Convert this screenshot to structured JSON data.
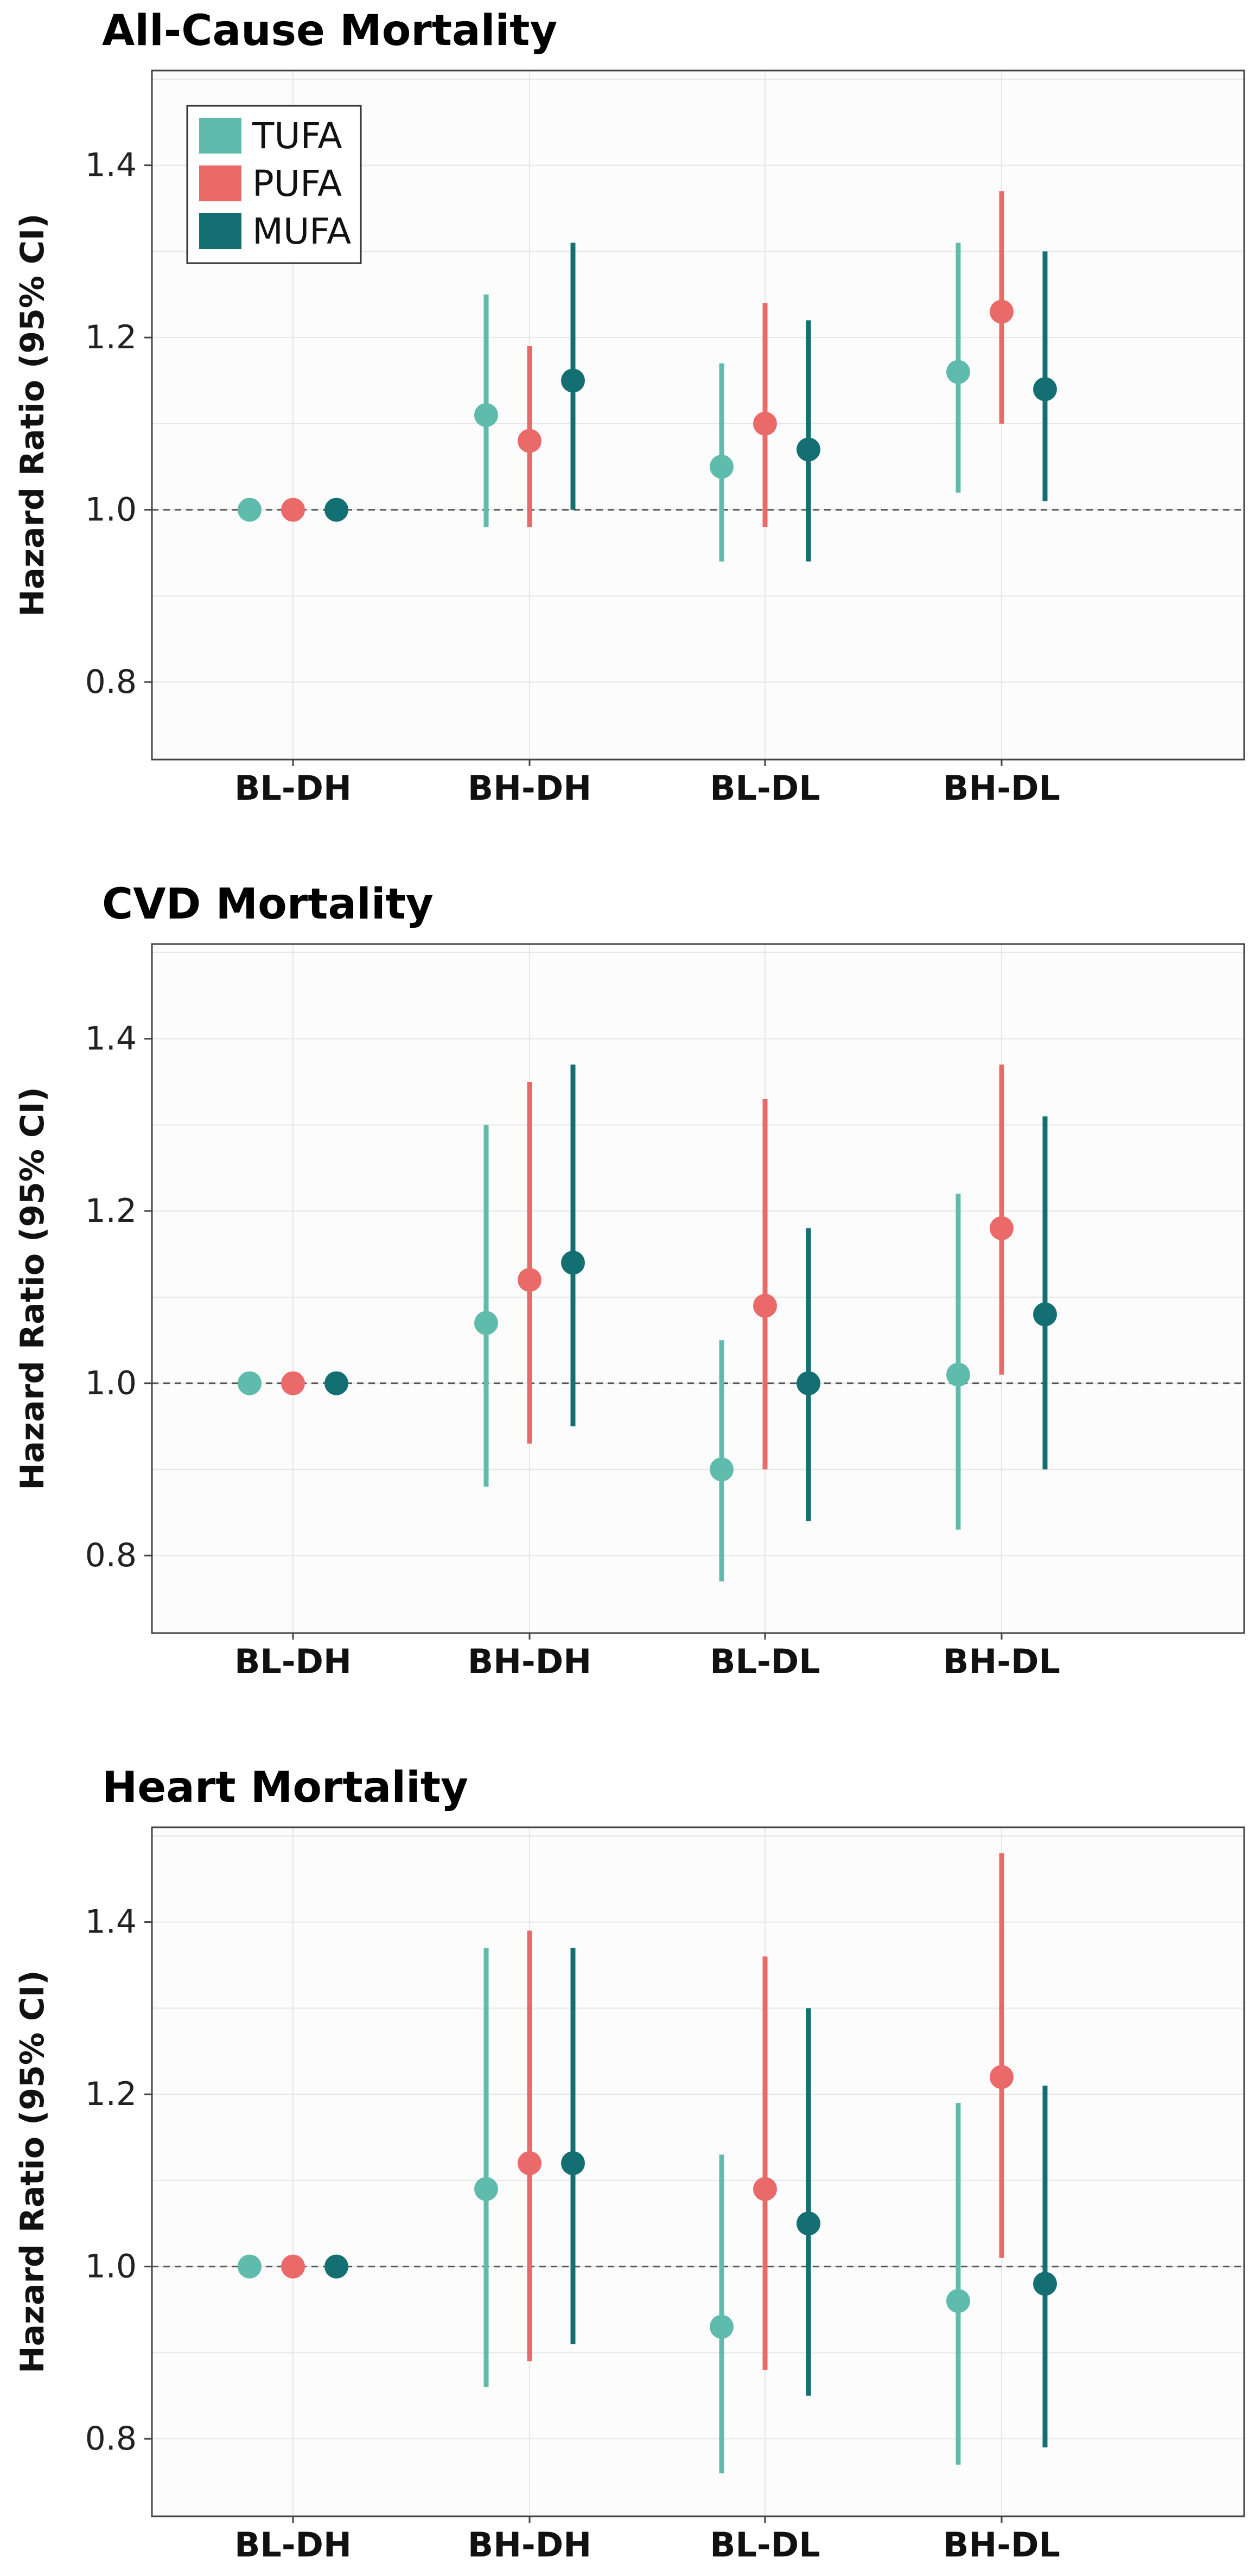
{
  "colors": {
    "TUFA": "#5fbbab",
    "PUFA": "#ea6a6a",
    "MUFA": "#136f72",
    "grid": "#e6e6e6",
    "frame": "#444444",
    "ref": "#555555"
  },
  "legend": [
    "TUFA",
    "PUFA",
    "MUFA"
  ],
  "chart_data": [
    {
      "type": "scatter",
      "title": "All-Cause Mortality",
      "ylabel": "Hazard Ratio (95% CI)",
      "categories": [
        "BL-DH",
        "BH-DH",
        "BL-DL",
        "BH-DL"
      ],
      "ylim": [
        0.71,
        1.51
      ],
      "yticks": [
        0.8,
        1.0,
        1.2,
        1.4
      ],
      "reference_line": 1.0,
      "series": [
        {
          "name": "TUFA",
          "hr": [
            1.0,
            1.11,
            1.05,
            1.16
          ],
          "lo": [
            null,
            0.98,
            0.94,
            1.02
          ],
          "hi": [
            null,
            1.25,
            1.17,
            1.31
          ]
        },
        {
          "name": "PUFA",
          "hr": [
            1.0,
            1.08,
            1.1,
            1.23
          ],
          "lo": [
            null,
            0.98,
            0.98,
            1.1
          ],
          "hi": [
            null,
            1.19,
            1.24,
            1.37
          ]
        },
        {
          "name": "MUFA",
          "hr": [
            1.0,
            1.15,
            1.07,
            1.14
          ],
          "lo": [
            null,
            1.0,
            0.94,
            1.01
          ],
          "hi": [
            null,
            1.31,
            1.22,
            1.3
          ]
        }
      ]
    },
    {
      "type": "scatter",
      "title": "CVD Mortality",
      "ylabel": "Hazard Ratio (95% CI)",
      "categories": [
        "BL-DH",
        "BH-DH",
        "BL-DL",
        "BH-DL"
      ],
      "ylim": [
        0.71,
        1.51
      ],
      "yticks": [
        0.8,
        1.0,
        1.2,
        1.4
      ],
      "reference_line": 1.0,
      "series": [
        {
          "name": "TUFA",
          "hr": [
            1.0,
            1.07,
            0.9,
            1.01
          ],
          "lo": [
            null,
            0.88,
            0.77,
            0.83
          ],
          "hi": [
            null,
            1.3,
            1.05,
            1.22
          ]
        },
        {
          "name": "PUFA",
          "hr": [
            1.0,
            1.12,
            1.09,
            1.18
          ],
          "lo": [
            null,
            0.93,
            0.9,
            1.01
          ],
          "hi": [
            null,
            1.35,
            1.33,
            1.37
          ]
        },
        {
          "name": "MUFA",
          "hr": [
            1.0,
            1.14,
            1.0,
            1.08
          ],
          "lo": [
            null,
            0.95,
            0.84,
            0.9
          ],
          "hi": [
            null,
            1.37,
            1.18,
            1.31
          ]
        }
      ]
    },
    {
      "type": "scatter",
      "title": "Heart Mortality",
      "ylabel": "Hazard Ratio (95% CI)",
      "categories": [
        "BL-DH",
        "BH-DH",
        "BL-DL",
        "BH-DL"
      ],
      "ylim": [
        0.71,
        1.51
      ],
      "yticks": [
        0.8,
        1.0,
        1.2,
        1.4
      ],
      "reference_line": 1.0,
      "series": [
        {
          "name": "TUFA",
          "hr": [
            1.0,
            1.09,
            0.93,
            0.96
          ],
          "lo": [
            null,
            0.86,
            0.76,
            0.77
          ],
          "hi": [
            null,
            1.37,
            1.13,
            1.19
          ]
        },
        {
          "name": "PUFA",
          "hr": [
            1.0,
            1.12,
            1.09,
            1.22
          ],
          "lo": [
            null,
            0.89,
            0.88,
            1.01
          ],
          "hi": [
            null,
            1.39,
            1.36,
            1.48
          ]
        },
        {
          "name": "MUFA",
          "hr": [
            1.0,
            1.12,
            1.05,
            0.98
          ],
          "lo": [
            null,
            0.91,
            0.85,
            0.79
          ],
          "hi": [
            null,
            1.37,
            1.3,
            1.21
          ]
        }
      ]
    }
  ]
}
